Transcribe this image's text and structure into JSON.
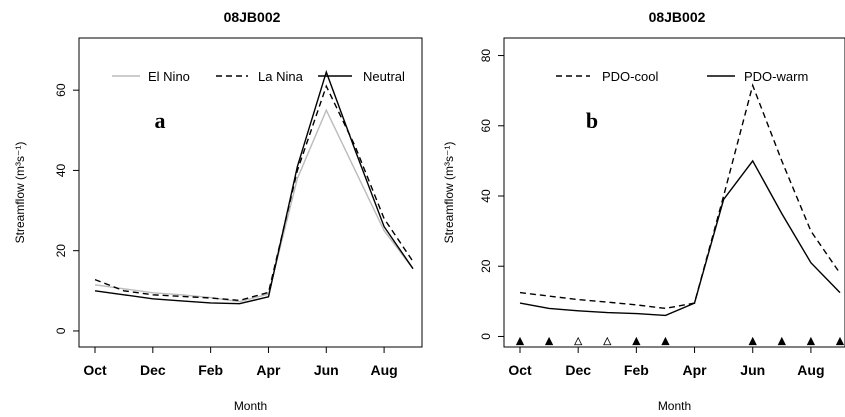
{
  "chart_data": [
    {
      "type": "line",
      "title": "08JB002",
      "panel_label": "a",
      "xlabel": "Month",
      "ylabel": "Streamflow (m³s⁻¹)",
      "categories": [
        "Oct",
        "Nov",
        "Dec",
        "Jan",
        "Feb",
        "Mar",
        "Apr",
        "May",
        "Jun",
        "Jul",
        "Aug",
        "Sep"
      ],
      "x_tick_labels": [
        "Oct",
        "Dec",
        "Feb",
        "Apr",
        "Jun",
        "Aug"
      ],
      "yticks": [
        0,
        20,
        40,
        60
      ],
      "ylim": [
        -4,
        73
      ],
      "legend_position": "top",
      "series": [
        {
          "name": "El Nino",
          "color": "#bbbbbb",
          "dash": "solid",
          "values": [
            11.5,
            10.5,
            9.5,
            9.0,
            8.3,
            7.3,
            9.2,
            38,
            55,
            40,
            25,
            15.5
          ]
        },
        {
          "name": "La Nina",
          "color": "#000000",
          "dash": "dashed",
          "values": [
            12.8,
            10.0,
            9.0,
            8.6,
            8.2,
            7.6,
            9.6,
            40,
            61,
            46,
            28,
            17.3
          ]
        },
        {
          "name": "Neutral",
          "color": "#000000",
          "dash": "solid",
          "values": [
            10.0,
            9.0,
            8.0,
            7.5,
            7.0,
            6.8,
            8.5,
            41,
            64.5,
            45,
            26,
            15.5
          ]
        }
      ]
    },
    {
      "type": "line",
      "title": "08JB002",
      "panel_label": "b",
      "xlabel": "Month",
      "ylabel": "Streamflow (m³s⁻¹)",
      "categories": [
        "Oct",
        "Nov",
        "Dec",
        "Jan",
        "Feb",
        "Mar",
        "Apr",
        "May",
        "Jun",
        "Jul",
        "Aug",
        "Sep"
      ],
      "x_tick_labels": [
        "Oct",
        "Dec",
        "Feb",
        "Apr",
        "Jun",
        "Aug"
      ],
      "yticks": [
        0,
        20,
        40,
        60,
        80
      ],
      "ylim": [
        -3,
        85
      ],
      "legend_position": "top",
      "series": [
        {
          "name": "PDO-cool",
          "color": "#000000",
          "dash": "dashed",
          "values": [
            12.5,
            11.5,
            10.5,
            9.8,
            9.0,
            8.0,
            9.5,
            40,
            71.5,
            50,
            30,
            18.0
          ]
        },
        {
          "name": "PDO-warm",
          "color": "#000000",
          "dash": "solid",
          "values": [
            9.5,
            8.0,
            7.3,
            6.8,
            6.5,
            6.0,
            9.5,
            39,
            50,
            35,
            21,
            12.5
          ]
        }
      ],
      "markers": {
        "y": -1.5,
        "items": [
          {
            "month": "Oct",
            "filled": true
          },
          {
            "month": "Nov",
            "filled": true
          },
          {
            "month": "Dec",
            "filled": false
          },
          {
            "month": "Jan",
            "filled": false
          },
          {
            "month": "Feb",
            "filled": true
          },
          {
            "month": "Mar",
            "filled": true
          },
          {
            "month": "Jun",
            "filled": true
          },
          {
            "month": "Jul",
            "filled": true
          },
          {
            "month": "Aug",
            "filled": true
          },
          {
            "month": "Sep",
            "filled": true
          }
        ]
      }
    }
  ]
}
